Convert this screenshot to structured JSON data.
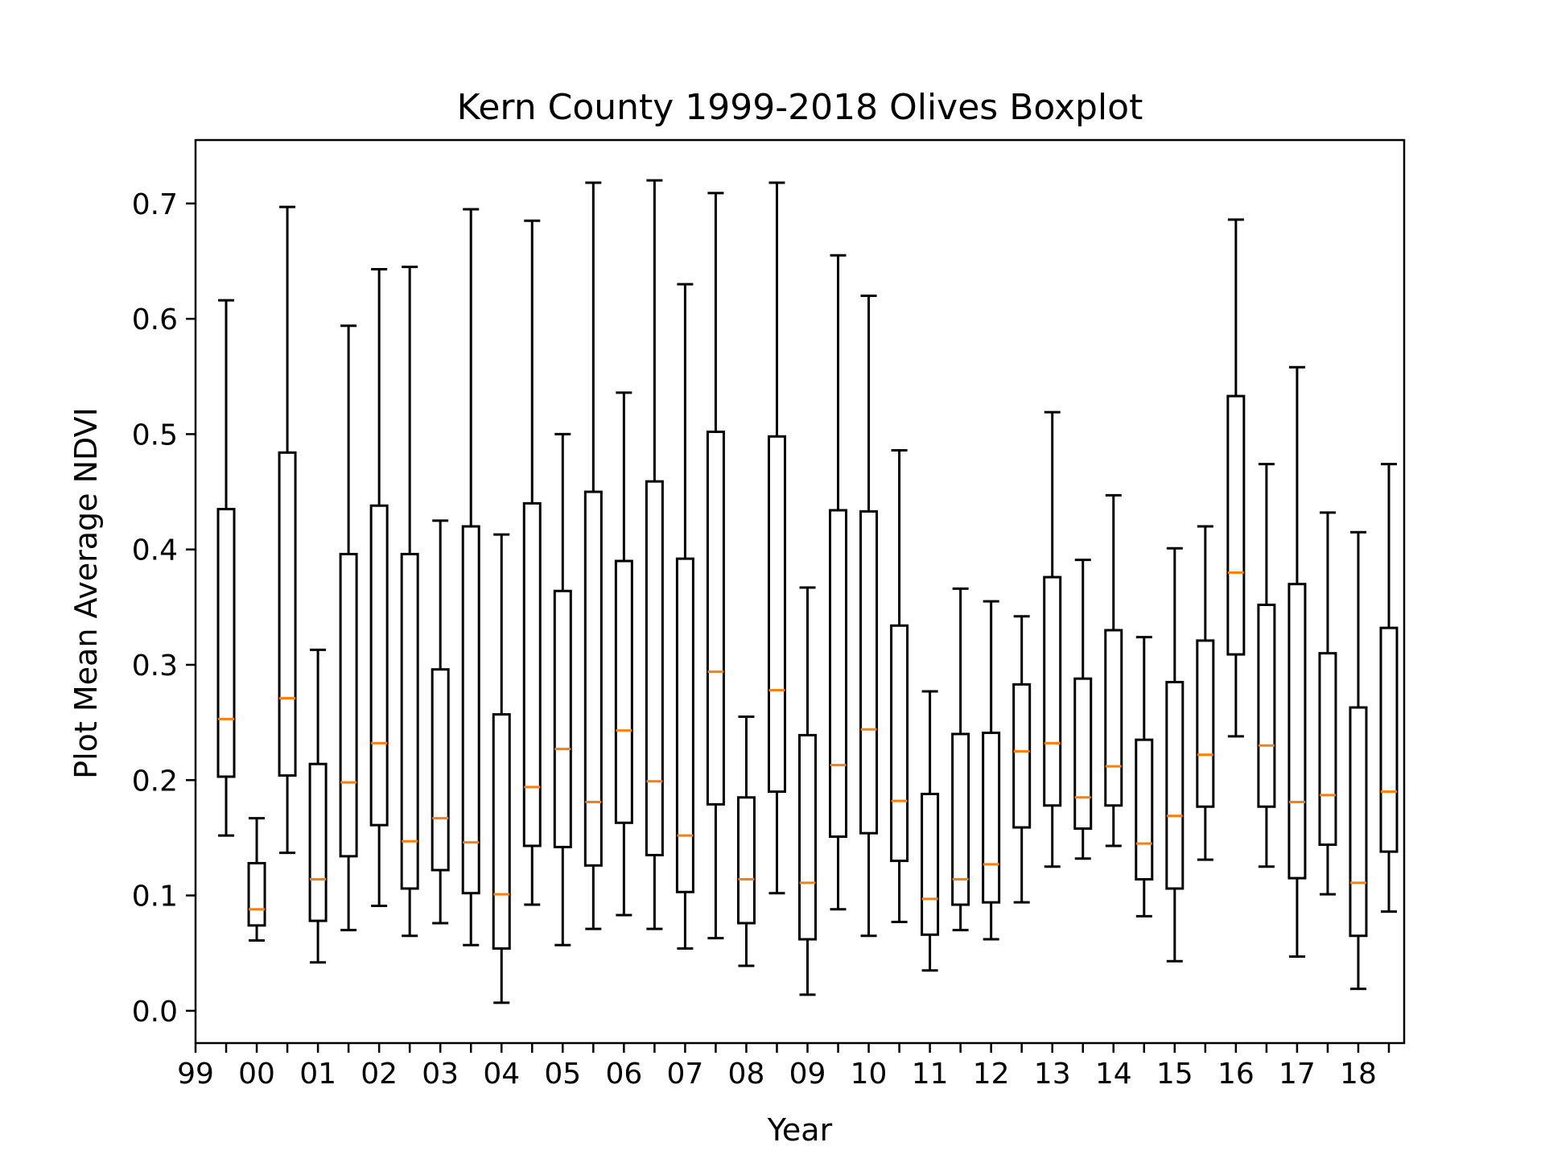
{
  "chart_data": {
    "type": "boxplot",
    "title": "Kern County 1999-2018 Olives Boxplot",
    "xlabel": "Year",
    "ylabel": "Plot Mean Average NDVI",
    "ylim": [
      -0.028,
      0.755
    ],
    "yticks": [
      "0.0",
      "0.1",
      "0.2",
      "0.3",
      "0.4",
      "0.5",
      "0.6",
      "0.7"
    ],
    "xtick_labels": [
      "99",
      "00",
      "01",
      "02",
      "03",
      "04",
      "05",
      "06",
      "07",
      "08",
      "09",
      "10",
      "11",
      "12",
      "13",
      "14",
      "15",
      "16",
      "17",
      "18"
    ],
    "grid": false,
    "colors": {
      "box": "#000000",
      "median": "#ff7f0e"
    },
    "boxes": [
      {
        "whislo": 0.152,
        "q1": 0.203,
        "med": 0.253,
        "q3": 0.435,
        "whishi": 0.616
      },
      {
        "whislo": 0.061,
        "q1": 0.074,
        "med": 0.088,
        "q3": 0.128,
        "whishi": 0.167
      },
      {
        "whislo": 0.137,
        "q1": 0.204,
        "med": 0.271,
        "q3": 0.484,
        "whishi": 0.697
      },
      {
        "whislo": 0.042,
        "q1": 0.078,
        "med": 0.114,
        "q3": 0.214,
        "whishi": 0.313
      },
      {
        "whislo": 0.07,
        "q1": 0.134,
        "med": 0.198,
        "q3": 0.396,
        "whishi": 0.594
      },
      {
        "whislo": 0.091,
        "q1": 0.161,
        "med": 0.232,
        "q3": 0.438,
        "whishi": 0.643
      },
      {
        "whislo": 0.065,
        "q1": 0.106,
        "med": 0.147,
        "q3": 0.396,
        "whishi": 0.645
      },
      {
        "whislo": 0.076,
        "q1": 0.122,
        "med": 0.167,
        "q3": 0.296,
        "whishi": 0.425
      },
      {
        "whislo": 0.057,
        "q1": 0.102,
        "med": 0.146,
        "q3": 0.42,
        "whishi": 0.695
      },
      {
        "whislo": 0.007,
        "q1": 0.054,
        "med": 0.101,
        "q3": 0.257,
        "whishi": 0.413
      },
      {
        "whislo": 0.092,
        "q1": 0.143,
        "med": 0.194,
        "q3": 0.44,
        "whishi": 0.685
      },
      {
        "whislo": 0.057,
        "q1": 0.142,
        "med": 0.227,
        "q3": 0.364,
        "whishi": 0.5
      },
      {
        "whislo": 0.071,
        "q1": 0.126,
        "med": 0.181,
        "q3": 0.45,
        "whishi": 0.718
      },
      {
        "whislo": 0.083,
        "q1": 0.163,
        "med": 0.243,
        "q3": 0.39,
        "whishi": 0.536
      },
      {
        "whislo": 0.071,
        "q1": 0.135,
        "med": 0.199,
        "q3": 0.459,
        "whishi": 0.72
      },
      {
        "whislo": 0.054,
        "q1": 0.103,
        "med": 0.152,
        "q3": 0.392,
        "whishi": 0.63
      },
      {
        "whislo": 0.063,
        "q1": 0.179,
        "med": 0.294,
        "q3": 0.502,
        "whishi": 0.709
      },
      {
        "whislo": 0.039,
        "q1": 0.076,
        "med": 0.114,
        "q3": 0.185,
        "whishi": 0.255
      },
      {
        "whislo": 0.102,
        "q1": 0.19,
        "med": 0.278,
        "q3": 0.498,
        "whishi": 0.718
      },
      {
        "whislo": 0.014,
        "q1": 0.062,
        "med": 0.111,
        "q3": 0.239,
        "whishi": 0.367
      },
      {
        "whislo": 0.088,
        "q1": 0.151,
        "med": 0.213,
        "q3": 0.434,
        "whishi": 0.655
      },
      {
        "whislo": 0.065,
        "q1": 0.154,
        "med": 0.244,
        "q3": 0.433,
        "whishi": 0.62
      },
      {
        "whislo": 0.077,
        "q1": 0.13,
        "med": 0.182,
        "q3": 0.334,
        "whishi": 0.486
      },
      {
        "whislo": 0.035,
        "q1": 0.066,
        "med": 0.097,
        "q3": 0.188,
        "whishi": 0.277
      },
      {
        "whislo": 0.07,
        "q1": 0.092,
        "med": 0.114,
        "q3": 0.24,
        "whishi": 0.366
      },
      {
        "whislo": 0.062,
        "q1": 0.094,
        "med": 0.127,
        "q3": 0.241,
        "whishi": 0.355
      },
      {
        "whislo": 0.094,
        "q1": 0.159,
        "med": 0.225,
        "q3": 0.283,
        "whishi": 0.342
      },
      {
        "whislo": 0.125,
        "q1": 0.178,
        "med": 0.232,
        "q3": 0.376,
        "whishi": 0.519
      },
      {
        "whislo": 0.132,
        "q1": 0.158,
        "med": 0.185,
        "q3": 0.288,
        "whishi": 0.391
      },
      {
        "whislo": 0.143,
        "q1": 0.178,
        "med": 0.212,
        "q3": 0.33,
        "whishi": 0.447
      },
      {
        "whislo": 0.082,
        "q1": 0.114,
        "med": 0.145,
        "q3": 0.235,
        "whishi": 0.324
      },
      {
        "whislo": 0.043,
        "q1": 0.106,
        "med": 0.169,
        "q3": 0.285,
        "whishi": 0.401
      },
      {
        "whislo": 0.131,
        "q1": 0.177,
        "med": 0.222,
        "q3": 0.321,
        "whishi": 0.42
      },
      {
        "whislo": 0.238,
        "q1": 0.309,
        "med": 0.38,
        "q3": 0.533,
        "whishi": 0.686
      },
      {
        "whislo": 0.125,
        "q1": 0.177,
        "med": 0.23,
        "q3": 0.352,
        "whishi": 0.474
      },
      {
        "whislo": 0.047,
        "q1": 0.115,
        "med": 0.181,
        "q3": 0.37,
        "whishi": 0.558
      },
      {
        "whislo": 0.101,
        "q1": 0.144,
        "med": 0.187,
        "q3": 0.31,
        "whishi": 0.432
      },
      {
        "whislo": 0.019,
        "q1": 0.065,
        "med": 0.111,
        "q3": 0.263,
        "whishi": 0.415
      },
      {
        "whislo": 0.086,
        "q1": 0.138,
        "med": 0.19,
        "q3": 0.332,
        "whishi": 0.474
      }
    ]
  }
}
